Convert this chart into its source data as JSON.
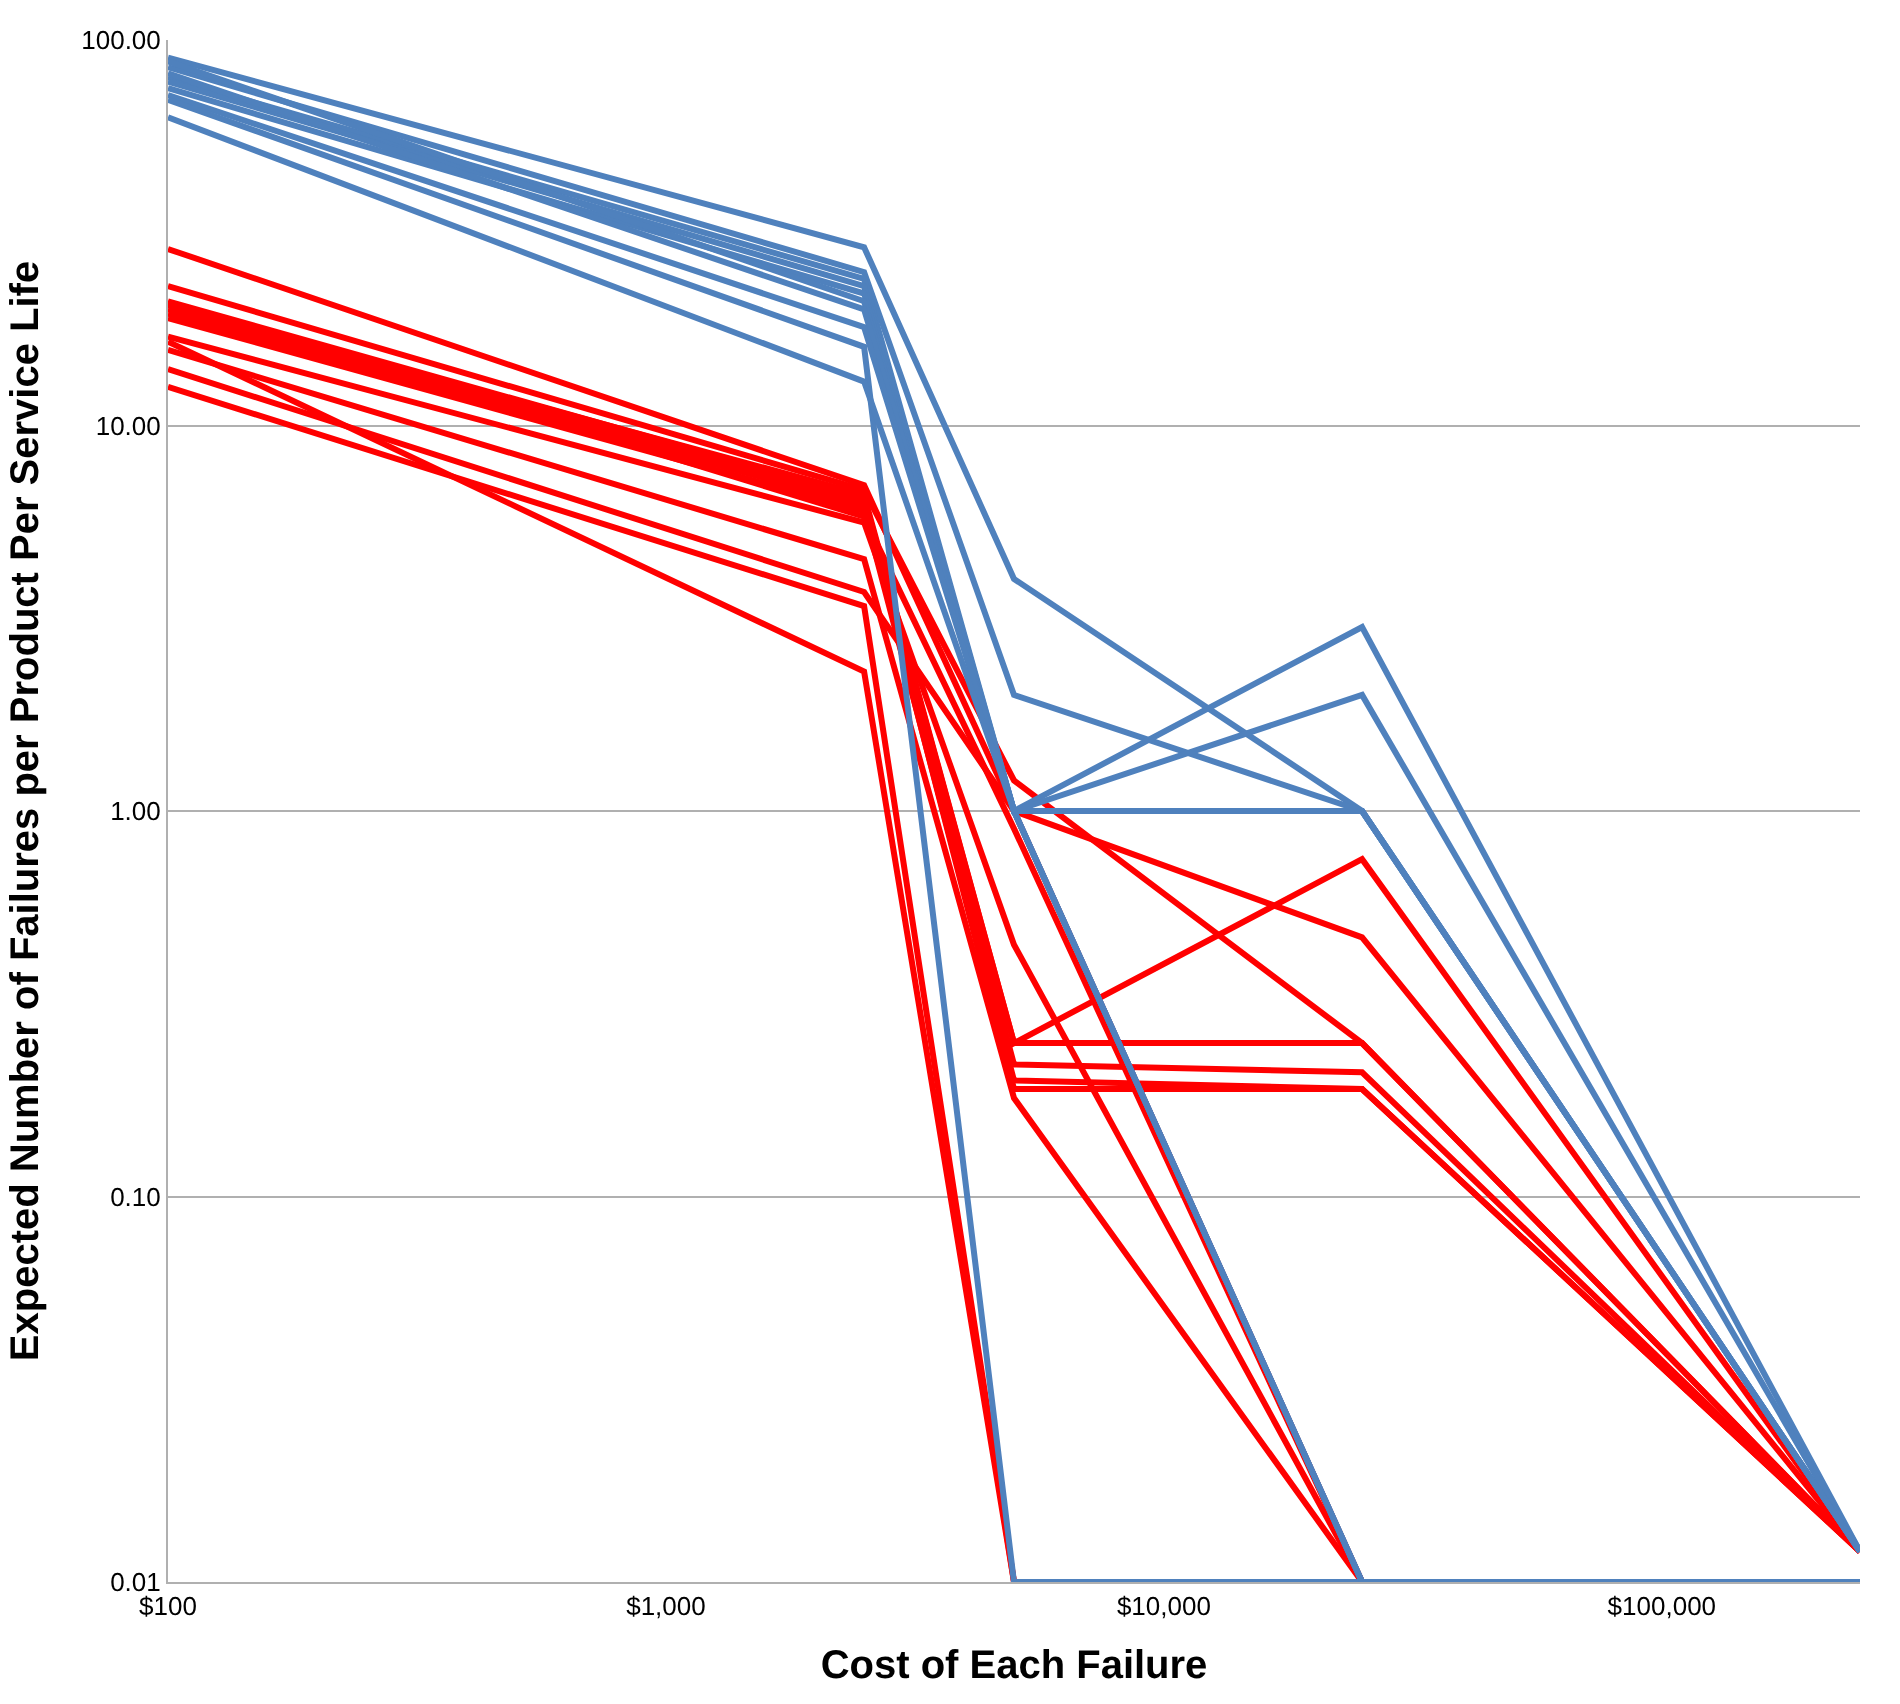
{
  "chart_data": {
    "type": "line",
    "xlabel": "Cost of Each Failure",
    "ylabel": "Expected Number of Failures per Product Per Service Life",
    "x": [
      100,
      2500,
      5000,
      25000,
      250000
    ],
    "xlim": [
      100,
      250000
    ],
    "ylim": [
      0.01,
      100
    ],
    "xticks": [
      {
        "value": 100,
        "label": "$100"
      },
      {
        "value": 1000,
        "label": "$1,000"
      },
      {
        "value": 10000,
        "label": "$10,000"
      },
      {
        "value": 100000,
        "label": "$100,000"
      }
    ],
    "yticks": [
      {
        "value": 0.01,
        "label": "0.01"
      },
      {
        "value": 0.1,
        "label": "0.10"
      },
      {
        "value": 1,
        "label": "1.00"
      },
      {
        "value": 10,
        "label": "10.00"
      },
      {
        "value": 100,
        "label": "100.00"
      }
    ],
    "log": "xy",
    "grid": "y",
    "marker": "none",
    "line_style": "solid",
    "series": [
      {
        "color": "#ff0000",
        "values": [
          28.7,
          7.0,
          1.0,
          0.47,
          0.012
        ]
      },
      {
        "color": "#ff0000",
        "values": [
          23,
          6.8,
          1.2,
          0.25,
          0.012
        ]
      },
      {
        "color": "#ff0000",
        "values": [
          21,
          6.5,
          0.25,
          0.75,
          0.012
        ]
      },
      {
        "color": "#ff0000",
        "values": [
          20.5,
          6.6,
          0.25,
          0.25,
          0.012
        ]
      },
      {
        "color": "#ff0000",
        "values": [
          20,
          6.4,
          0.22,
          0.21,
          0.012
        ]
      },
      {
        "color": "#ff0000",
        "values": [
          19.5,
          6.2,
          0.19,
          0.19,
          0.012
        ]
      },
      {
        "color": "#ff0000",
        "values": [
          19,
          6.0,
          0.2,
          0.19,
          0.012
        ]
      },
      {
        "color": "#ff0000",
        "values": [
          17,
          5.6,
          0.45,
          0.01,
          null
        ]
      },
      {
        "color": "#ff0000",
        "values": [
          15.7,
          4.5,
          0.18,
          0.01,
          null
        ]
      },
      {
        "color": "#ff0000",
        "values": [
          14,
          3.7,
          1.0,
          0.01,
          null
        ]
      },
      {
        "color": "#ff0000",
        "values": [
          12.6,
          3.4,
          0.01,
          0.01,
          null
        ]
      },
      {
        "color": "#ff0000",
        "values": [
          16.5,
          2.3,
          0.01,
          0.01,
          null
        ]
      },
      {
        "color": "#ff0000",
        "values": [
          20.8,
          5.8,
          0.9,
          0.01,
          null
        ]
      },
      {
        "color": "#4f81bd",
        "values": [
          90,
          29,
          4,
          1,
          0.012
        ]
      },
      {
        "color": "#4f81bd",
        "values": [
          85,
          25,
          2,
          1,
          0.012
        ]
      },
      {
        "color": "#4f81bd",
        "values": [
          80,
          24,
          1,
          3,
          0.012
        ]
      },
      {
        "color": "#4f81bd",
        "values": [
          78,
          23,
          1,
          2,
          0.012
        ]
      },
      {
        "color": "#4f81bd",
        "values": [
          75,
          22,
          1,
          1,
          0.012
        ]
      },
      {
        "color": "#4f81bd",
        "values": [
          88,
          21,
          1,
          1,
          0.012
        ]
      },
      {
        "color": "#4f81bd",
        "values": [
          82,
          20,
          1,
          0.01,
          0.01
        ]
      },
      {
        "color": "#4f81bd",
        "values": [
          72,
          18,
          1,
          0.01,
          0.01
        ]
      },
      {
        "color": "#4f81bd",
        "values": [
          70,
          16,
          0.01,
          0.01,
          0.01
        ]
      },
      {
        "color": "#4f81bd",
        "values": [
          63,
          13,
          1,
          0.01,
          0.01
        ]
      }
    ]
  }
}
